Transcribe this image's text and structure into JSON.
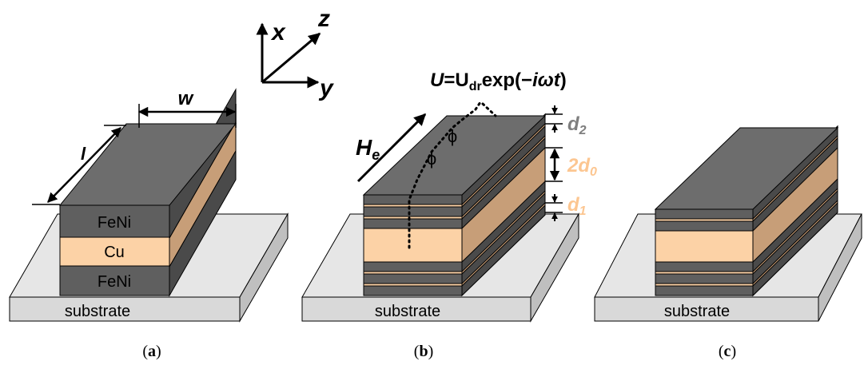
{
  "colors": {
    "feni_front": "#5f5f5f",
    "feni_side": "#4a4a4a",
    "feni_top": "#6d6d6d",
    "cu_front": "#fcd2a6",
    "cu_side": "#c79e78",
    "substrate_front": "#d9d9d9",
    "substrate_top": "#e6e6e6",
    "substrate_side": "#bfbfbf",
    "gray_label": "#7f7f7f",
    "peach_label": "#fcc691"
  },
  "axes": {
    "x": "x",
    "y": "y",
    "z": "z"
  },
  "panel_a": {
    "caption_open": "(",
    "caption_letter": "a",
    "caption_close": ")",
    "layer_top": "FeNi",
    "layer_middle": "Cu",
    "layer_bottom": "FeNi",
    "substrate": "substrate",
    "width_label": "w",
    "length_label": "l"
  },
  "panel_b": {
    "caption_open": "(",
    "caption_letter": "b",
    "caption_close": ")",
    "substrate": "substrate",
    "field_label": "H",
    "field_sub": "e",
    "voltage_U": "U",
    "voltage_eq": "=U",
    "voltage_sub": "dr",
    "voltage_exp": "exp(−",
    "voltage_iwt": "iωt",
    "voltage_close": ")",
    "phi_1": "ϕ",
    "phi_2": "ϕ",
    "d2": "d",
    "d2_sub": "2",
    "d0": "2d",
    "d0_sub": "0",
    "d1": "d",
    "d1_sub": "1"
  },
  "panel_c": {
    "caption_open": "(",
    "caption_letter": "c",
    "caption_close": ")",
    "substrate": "substrate"
  }
}
